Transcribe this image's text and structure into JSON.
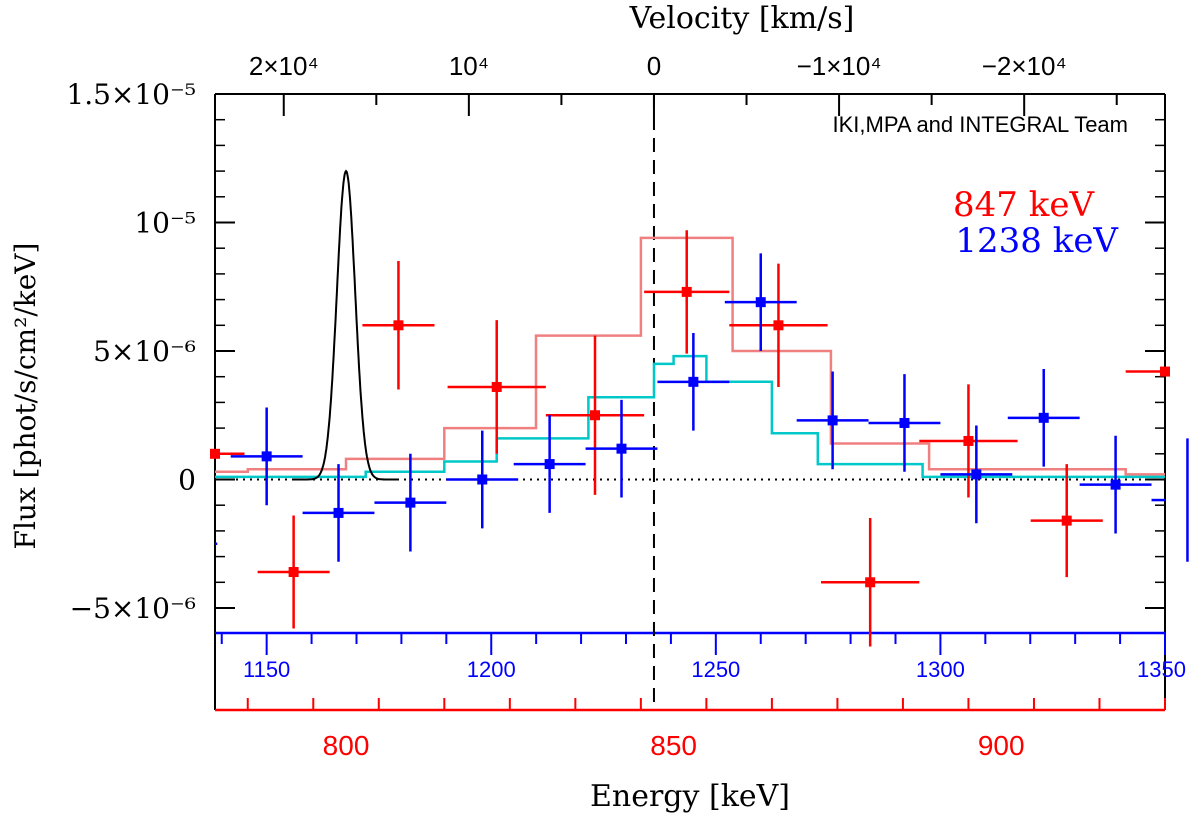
{
  "chart_data": {
    "type": "scatter",
    "title": "",
    "credit": "IKI,MPA and INTEGRAL Team",
    "xlabel": "Energy [keV]",
    "top_xlabel": "Velocity [km/s]",
    "ylabel": "Flux [phot/s/cm²/keV]",
    "ylim": [
      -6e-06,
      1.5e-05
    ],
    "y_ticks": [
      {
        "value": 1.5e-05,
        "label": "1.5×10⁻⁵"
      },
      {
        "value": 1e-05,
        "label": "10⁻⁵"
      },
      {
        "value": 5e-06,
        "label": "5×10⁻⁶"
      },
      {
        "value": 0,
        "label": "0"
      },
      {
        "value": -5e-06,
        "label": "−5×10⁻⁶"
      }
    ],
    "axes": {
      "energy_847": {
        "range": [
          780,
          925
        ],
        "tick_labels": [
          "800",
          "850",
          "900"
        ],
        "color": "#ff0000"
      },
      "energy_1238": {
        "range": [
          1138.5,
          1350
        ],
        "tick_labels": [
          "1150",
          "1200",
          "1250",
          "1300",
          "1350"
        ],
        "color": "#0000ff"
      },
      "velocity": {
        "tick_labels": [
          "2×10⁴",
          "10⁴",
          "0",
          "−1×10⁴",
          "−2×10⁴"
        ],
        "unit": "km/s"
      }
    },
    "reference_line": {
      "energy_847": 847,
      "style": "dashed",
      "color": "#000000"
    },
    "zero_line": {
      "value": 0,
      "style": "dotted"
    },
    "legend": {
      "placement": "top-right",
      "entries": [
        "847 keV",
        "1238 keV"
      ]
    },
    "series": [
      {
        "name": "847 keV",
        "color": "#ff0000",
        "axis": "energy_847",
        "points": [
          {
            "x": 792,
            "xerr": 5.5,
            "y": -3.6e-06,
            "yerr": 2.2e-06
          },
          {
            "x": 808,
            "xerr": 5.5,
            "y": 6e-06,
            "yerr": 2.5e-06
          },
          {
            "x": 823,
            "xerr": 7.5,
            "y": 3.6e-06,
            "yerr": 2.6e-06
          },
          {
            "x": 838,
            "xerr": 7.5,
            "y": 2.5e-06,
            "yerr": 3.1e-06
          },
          {
            "x": 852,
            "xerr": 6.5,
            "y": 7.3e-06,
            "yerr": 2.4e-06
          },
          {
            "x": 866,
            "xerr": 7.5,
            "y": 6e-06,
            "yerr": 2.4e-06
          },
          {
            "x": 880,
            "xerr": 7.5,
            "y": -4e-06,
            "yerr": 2.5e-06
          },
          {
            "x": 895,
            "xerr": 7.5,
            "y": 1.5e-06,
            "yerr": 2.2e-06
          },
          {
            "x": 910,
            "xerr": 5.5,
            "y": -1.6e-06,
            "yerr": 2.2e-06
          },
          {
            "x": 780,
            "xerr": 4.5,
            "y": 1e-06,
            "yerr": 0
          },
          {
            "x": 925,
            "xerr": 6,
            "y": 4.2e-06,
            "yerr": 0
          }
        ]
      },
      {
        "name": "1238 keV",
        "color": "#0000ff",
        "axis": "energy_1238",
        "points": [
          {
            "x": 1150,
            "xerr": 8,
            "y": 9e-07,
            "yerr": 1.9e-06
          },
          {
            "x": 1166,
            "xerr": 8,
            "y": -1.3e-06,
            "yerr": 1.9e-06
          },
          {
            "x": 1182,
            "xerr": 8,
            "y": -9e-07,
            "yerr": 1.9e-06
          },
          {
            "x": 1198,
            "xerr": 8,
            "y": 0,
            "yerr": 1.9e-06
          },
          {
            "x": 1213,
            "xerr": 8,
            "y": 6e-07,
            "yerr": 1.9e-06
          },
          {
            "x": 1229,
            "xerr": 8,
            "y": 1.2e-06,
            "yerr": 1.9e-06
          },
          {
            "x": 1245,
            "xerr": 8,
            "y": 3.8e-06,
            "yerr": 1.9e-06
          },
          {
            "x": 1260,
            "xerr": 8,
            "y": 6.9e-06,
            "yerr": 1.9e-06
          },
          {
            "x": 1276,
            "xerr": 8,
            "y": 2.3e-06,
            "yerr": 1.9e-06
          },
          {
            "x": 1292,
            "xerr": 8,
            "y": 2.2e-06,
            "yerr": 1.9e-06
          },
          {
            "x": 1308,
            "xerr": 8,
            "y": 2e-07,
            "yerr": 1.9e-06
          },
          {
            "x": 1323,
            "xerr": 8,
            "y": 2.4e-06,
            "yerr": 1.9e-06
          },
          {
            "x": 1339,
            "xerr": 8,
            "y": -2e-07,
            "yerr": 1.9e-06
          },
          {
            "x": 1355,
            "xerr": 8,
            "y": -8e-07,
            "yerr": 2.4e-06
          },
          {
            "x": 1134,
            "xerr": 5,
            "y": -2.5e-06,
            "yerr": 0
          }
        ]
      },
      {
        "name": "",
        "color": "#f08080",
        "axis": "energy_847",
        "type": "step",
        "edges": [
          780,
          785,
          800,
          805,
          815,
          829,
          845,
          859,
          874,
          889,
          904,
          919,
          925
        ],
        "values": [
          3e-07,
          4e-07,
          8e-07,
          8e-07,
          2e-06,
          5.6e-06,
          9.4e-06,
          5e-06,
          1.4e-06,
          4e-07,
          4e-07,
          2e-07
        ]
      },
      {
        "name": "",
        "color": "#00c8c8",
        "axis": "energy_847",
        "type": "step",
        "edges": [
          780,
          800,
          803,
          815,
          823,
          837,
          847,
          850,
          855,
          865,
          872,
          888,
          900,
          925
        ],
        "values": [
          1e-07,
          1e-07,
          3e-07,
          7e-07,
          1.6e-06,
          3.2e-06,
          4.5e-06,
          4.8e-06,
          3.8e-06,
          1.8e-06,
          6e-07,
          1e-07,
          1e-07
        ]
      },
      {
        "name": "",
        "color": "#000000",
        "axis": "energy_847",
        "type": "line",
        "gaussian": {
          "center": 800,
          "sigma": 1.4,
          "peak": 1.2e-05
        }
      }
    ]
  }
}
